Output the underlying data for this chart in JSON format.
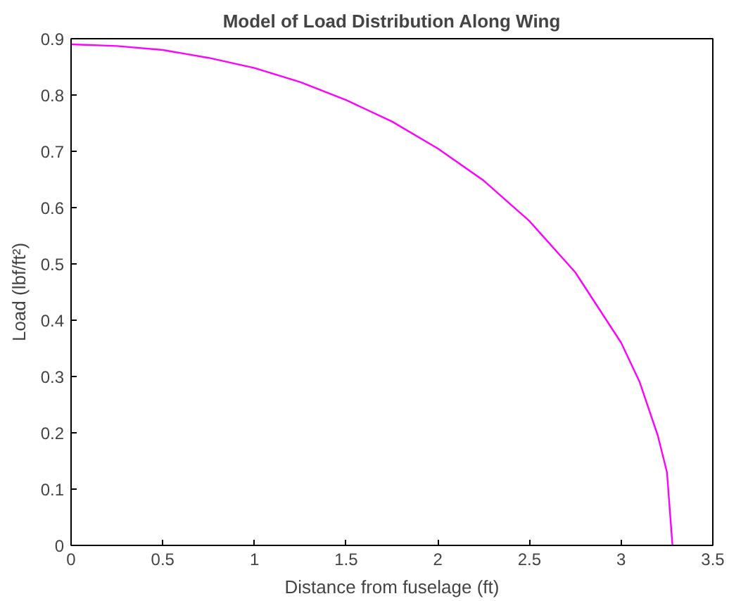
{
  "chart_data": {
    "type": "line",
    "title": "Model of Load Distribution Along Wing",
    "xlabel": "Distance from fuselage (ft)",
    "ylabel": "Load (lbf/ft²)",
    "x": [
      0,
      0.25,
      0.5,
      0.75,
      1,
      1.25,
      1.5,
      1.75,
      2,
      2.25,
      2.5,
      2.75,
      3,
      3.1,
      3.2,
      3.25,
      3.28
    ],
    "series": [
      {
        "color": "#ff00ff",
        "values": [
          0.89,
          0.887,
          0.88,
          0.866,
          0.848,
          0.823,
          0.791,
          0.753,
          0.705,
          0.648,
          0.576,
          0.485,
          0.36,
          0.291,
          0.195,
          0.13,
          0
        ]
      }
    ],
    "xlim": [
      0,
      3.5
    ],
    "ylim": [
      0,
      0.9
    ],
    "xticks": [
      0,
      0.5,
      1,
      1.5,
      2,
      2.5,
      3,
      3.5
    ],
    "yticks": [
      0,
      0.1,
      0.2,
      0.3,
      0.4,
      0.5,
      0.6,
      0.7,
      0.8,
      0.9
    ],
    "grid": false,
    "marker": "none",
    "line_style": "solid"
  }
}
